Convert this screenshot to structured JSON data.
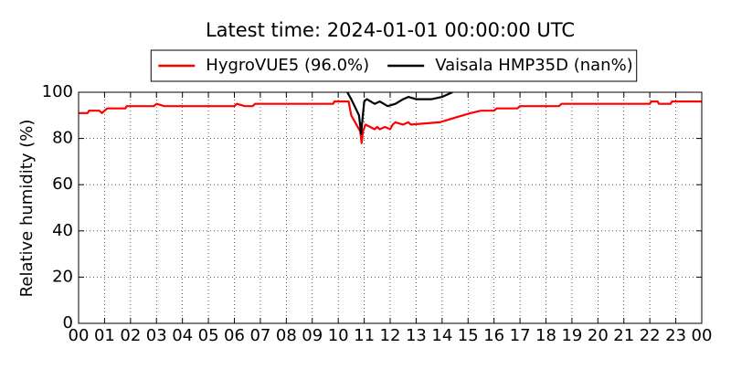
{
  "chart_data": {
    "type": "line",
    "title": "Latest time: 2024-01-01 00:00:00 UTC",
    "y_label": "Relative humidity (%)",
    "legend": "upper center",
    "grid": true,
    "xlim": [
      0,
      24
    ],
    "xticks": [
      {
        "value": 0,
        "label": "00"
      },
      {
        "value": 1,
        "label": "01"
      },
      {
        "value": 2,
        "label": "02"
      },
      {
        "value": 3,
        "label": "03"
      },
      {
        "value": 4,
        "label": "04"
      },
      {
        "value": 5,
        "label": "05"
      },
      {
        "value": 6,
        "label": "06"
      },
      {
        "value": 7,
        "label": "07"
      },
      {
        "value": 8,
        "label": "08"
      },
      {
        "value": 9,
        "label": "09"
      },
      {
        "value": 10,
        "label": "10"
      },
      {
        "value": 11,
        "label": "11"
      },
      {
        "value": 12,
        "label": "12"
      },
      {
        "value": 13,
        "label": "13"
      },
      {
        "value": 14,
        "label": "14"
      },
      {
        "value": 15,
        "label": "15"
      },
      {
        "value": 16,
        "label": "16"
      },
      {
        "value": 17,
        "label": "17"
      },
      {
        "value": 18,
        "label": "18"
      },
      {
        "value": 19,
        "label": "19"
      },
      {
        "value": 20,
        "label": "20"
      },
      {
        "value": 21,
        "label": "21"
      },
      {
        "value": 22,
        "label": "22"
      },
      {
        "value": 23,
        "label": "23"
      },
      {
        "value": 24,
        "label": "00"
      }
    ],
    "ylim": [
      0,
      100
    ],
    "yticks": [
      0,
      20,
      40,
      60,
      80,
      100
    ],
    "series": [
      {
        "name": "HygroVUE5 (96.0%)",
        "color": "#ff0000",
        "x": [
          0,
          0.35,
          0.4,
          0.8,
          0.9,
          1.0,
          1.1,
          1.8,
          1.85,
          2.9,
          3.0,
          3.3,
          6.0,
          6.1,
          6.4,
          6.7,
          6.8,
          9.8,
          9.85,
          10.4,
          10.5,
          10.7,
          10.85,
          10.9,
          10.95,
          11.05,
          11.4,
          11.5,
          11.6,
          11.8,
          12.0,
          12.1,
          12.2,
          12.5,
          12.7,
          12.8,
          13.9,
          14.2,
          14.5,
          14.8,
          15.1,
          15.5,
          16.0,
          16.1,
          16.9,
          17.0,
          18.5,
          18.6,
          22.0,
          22.05,
          22.3,
          22.35,
          22.8,
          22.85,
          24
        ],
        "values": [
          91,
          91,
          92,
          92,
          91,
          92,
          93,
          93,
          94,
          94,
          95,
          94,
          94,
          95,
          94,
          94,
          95,
          95,
          96,
          96,
          90,
          86,
          83,
          78,
          83,
          86,
          84,
          85,
          84,
          85,
          84,
          86,
          87,
          86,
          87,
          86,
          87,
          88,
          89,
          90,
          91,
          92,
          92,
          93,
          93,
          94,
          94,
          95,
          95,
          96,
          96,
          95,
          95,
          96,
          96
        ]
      },
      {
        "name": "Vaisala HMP35D (nan%)",
        "color": "#000000",
        "x": [
          10.35,
          10.5,
          10.8,
          10.88,
          10.93,
          11.0,
          11.1,
          11.4,
          11.6,
          11.9,
          12.2,
          12.5,
          12.7,
          13.0,
          13.6,
          14.0,
          14.4
        ],
        "values": [
          100,
          97,
          90,
          82,
          88,
          96,
          97,
          95,
          96,
          94,
          95,
          97,
          98,
          97,
          97,
          98,
          100
        ]
      }
    ]
  }
}
